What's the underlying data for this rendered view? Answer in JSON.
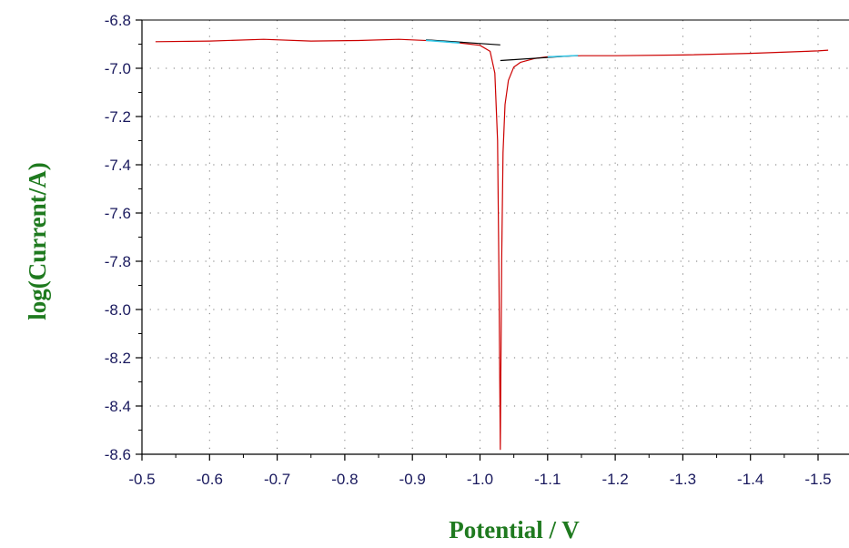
{
  "chart_data": {
    "type": "line",
    "xlabel": "Potential / V",
    "ylabel": "log(Current/A)",
    "xlim": [
      -0.5,
      -1.52
    ],
    "ylim": [
      -8.6,
      -6.8
    ],
    "x_ticks": [
      -0.5,
      -0.6,
      -0.7,
      -0.8,
      -0.9,
      -1.0,
      -1.1,
      -1.2,
      -1.3,
      -1.4,
      -1.5
    ],
    "x_tick_labels": [
      "-0.5",
      "-0.6",
      "-0.7",
      "-0.8",
      "-0.9",
      "-1.0",
      "-1.1",
      "-1.2",
      "-1.3",
      "-1.4",
      "-1.5"
    ],
    "y_ticks": [
      -6.8,
      -7.0,
      -7.2,
      -7.4,
      -7.6,
      -7.8,
      -8.0,
      -8.2,
      -8.4,
      -8.6
    ],
    "y_tick_labels": [
      "-6.8",
      "-7.0",
      "-7.2",
      "-7.4",
      "-7.6",
      "-7.8",
      "-8.0",
      "-8.2",
      "-8.4",
      "-8.6"
    ],
    "grid": true,
    "series": [
      {
        "color": "#cc0000",
        "x": [
          -0.52,
          -0.6,
          -0.68,
          -0.75,
          -0.82,
          -0.88,
          -0.93,
          -0.97,
          -1.0,
          -1.015,
          -1.022,
          -1.026,
          -1.028,
          -1.03,
          -1.032,
          -1.034,
          -1.037,
          -1.042,
          -1.05,
          -1.06,
          -1.08,
          -1.1,
          -1.15,
          -1.2,
          -1.3,
          -1.4,
          -1.5,
          -1.515
        ],
        "y": [
          -6.89,
          -6.887,
          -6.88,
          -6.887,
          -6.885,
          -6.88,
          -6.886,
          -6.895,
          -6.905,
          -6.93,
          -7.02,
          -7.3,
          -7.85,
          -8.58,
          -7.8,
          -7.35,
          -7.15,
          -7.05,
          -6.995,
          -6.975,
          -6.96,
          -6.952,
          -6.948,
          -6.948,
          -6.945,
          -6.938,
          -6.928,
          -6.925
        ]
      },
      {
        "color": "#000000",
        "x": [
          -0.92,
          -1.03
        ],
        "y": [
          -6.882,
          -6.903
        ]
      },
      {
        "color": "#000000",
        "x": [
          -1.03,
          -1.14
        ],
        "y": [
          -6.968,
          -6.948
        ]
      },
      {
        "color": "#33c8e8",
        "x": [
          -0.92,
          -0.97
        ],
        "y": [
          -6.884,
          -6.895
        ]
      },
      {
        "color": "#33c8e8",
        "x": [
          -1.1,
          -1.145
        ],
        "y": [
          -6.953,
          -6.947
        ]
      }
    ]
  }
}
